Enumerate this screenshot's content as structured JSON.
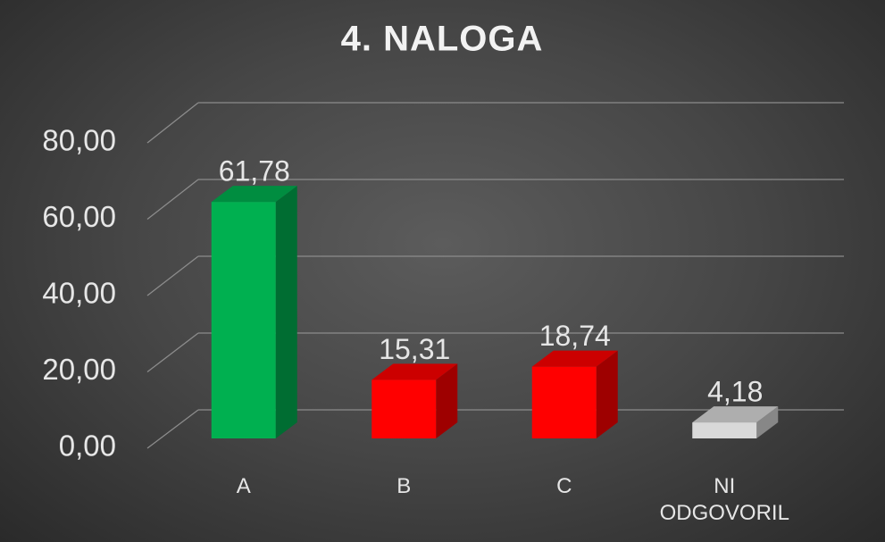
{
  "chart_data": {
    "type": "bar3d",
    "title": "4. NALOGA",
    "categories": [
      "A",
      "B",
      "C",
      "NI ODGOVORIL"
    ],
    "values": [
      61.78,
      15.31,
      18.74,
      4.18
    ],
    "value_labels": [
      "61,78",
      "15,31",
      "18,74",
      "4,18"
    ],
    "colors": [
      "#00b050",
      "#ff0000",
      "#ff0000",
      "#d9d9d9"
    ],
    "ylim": [
      0,
      80
    ],
    "yticks": [
      {
        "value": 0,
        "label": "0,00"
      },
      {
        "value": 20,
        "label": "20,00"
      },
      {
        "value": 40,
        "label": "40,00"
      },
      {
        "value": 60,
        "label": "60,00"
      },
      {
        "value": 80,
        "label": "80,00"
      }
    ],
    "grid": true
  }
}
